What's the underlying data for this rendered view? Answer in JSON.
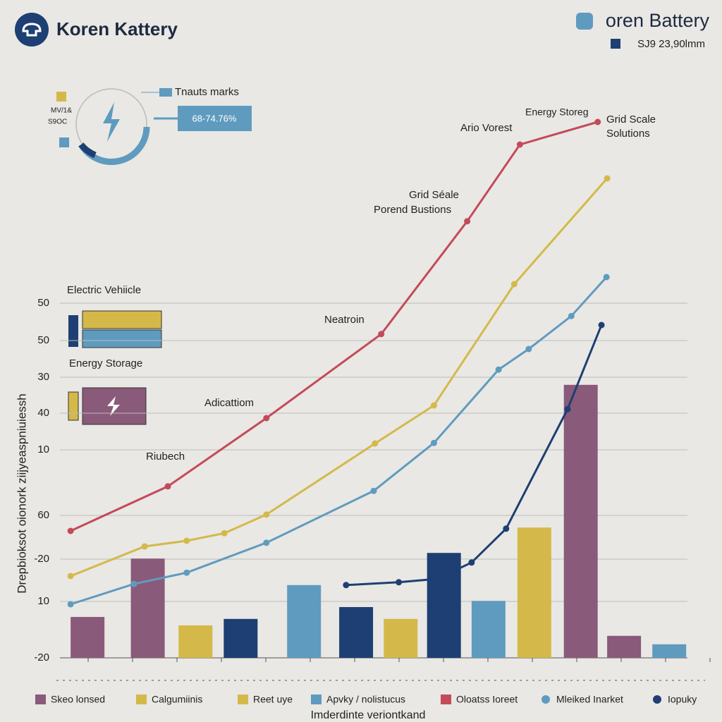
{
  "chart_data": {
    "type": "line",
    "title": "Koren Kattery",
    "brand": "oren Battery",
    "brand_subtitle": "SJ9  23,90lmm",
    "gauge": {
      "label": "Tnauts marks",
      "readout": "68-74.76%",
      "side_labels": [
        "MV/1&",
        "S9OC"
      ]
    },
    "y_axis_label": "Drepbioksot oionork ziijyeaspniuiessh",
    "x_axis_label": "Imderdinte veriontkand",
    "y_axis_labels": [
      "50",
      "50",
      "30",
      "40",
      "10",
      "60",
      "-20",
      "10",
      "-20"
    ],
    "annotations": [
      "Energy Storeg",
      "Grid Scale",
      "Solutions",
      "Ario Vorest",
      "Grid Séale",
      "Porend Bustions",
      "Neatroin",
      "Adicattiom",
      "Riubech",
      "Electric Vehiicle",
      "Energy Storage"
    ],
    "xlim": [
      0,
      100
    ],
    "ylim": [
      0,
      100
    ],
    "grid": true,
    "series": [
      {
        "color": "#c44a5a",
        "x": [
          1.7,
          17.2,
          32.9,
          51.2,
          64.9,
          73.3,
          85.7
        ],
        "values": [
          22.5,
          30.4,
          42.5,
          57.4,
          77.4,
          91,
          95
        ]
      },
      {
        "color": "#d4b94a",
        "x": [
          1.7,
          13.5,
          20.2,
          26.2,
          32.9,
          50.2,
          59.6,
          72.4,
          87.2
        ],
        "values": [
          14.5,
          19.75,
          20.75,
          22.1,
          25.4,
          38,
          44.75,
          66.25,
          85
        ]
      },
      {
        "color": "#5f9bbf",
        "x": [
          1.7,
          11.8,
          20.2,
          32.9,
          50,
          59.6,
          69.9,
          74.7,
          81.5,
          87.1
        ],
        "values": [
          9.5,
          13.1,
          15.1,
          20.4,
          29.6,
          38.1,
          51.1,
          54.75,
          60.6,
          67.5
        ]
      },
      {
        "color": "#1e3f73",
        "x": [
          45.6,
          54,
          60.1,
          65.6,
          71.1,
          80.9,
          86.3
        ],
        "values": [
          12.9,
          13.4,
          14,
          16.9,
          22.9,
          44.1,
          59
        ]
      }
    ],
    "bars": {
      "x": [
        4.4,
        14,
        21.6,
        28.8,
        38.9,
        47.2,
        54.3,
        61.2,
        68.3,
        75.6,
        83,
        89.9,
        97.1
      ],
      "values": [
        7.25,
        17.6,
        5.75,
        6.9,
        12.9,
        9,
        6.9,
        18.6,
        10.1,
        23.1,
        48.4,
        3.9,
        2.4
      ],
      "colors": [
        "#8a5a7a",
        "#8a5a7a",
        "#d4b94a",
        "#1e3f73",
        "#5f9bbf",
        "#1e3f73",
        "#d4b94a",
        "#1e3f73",
        "#5f9bbf",
        "#d4b94a",
        "#8a5a7a",
        "#8a5a7a",
        "#5f9bbf"
      ]
    },
    "legend": [
      {
        "name": "Skeo lonsed",
        "color": "#8a5a7a"
      },
      {
        "name": "Calgumiinis",
        "color": "#d4b94a"
      },
      {
        "name": "Reet uye",
        "color": "#d4b94a"
      },
      {
        "name": "Apvky / nolistucus",
        "color": "#5f9bbf"
      },
      {
        "name": "Oloatss Ioreet",
        "color": "#c44a5a"
      },
      {
        "name": "Mleiked Inarket",
        "color": "#5f9bbf"
      },
      {
        "name": "Iopuky",
        "color": "#1e3f73"
      }
    ]
  }
}
